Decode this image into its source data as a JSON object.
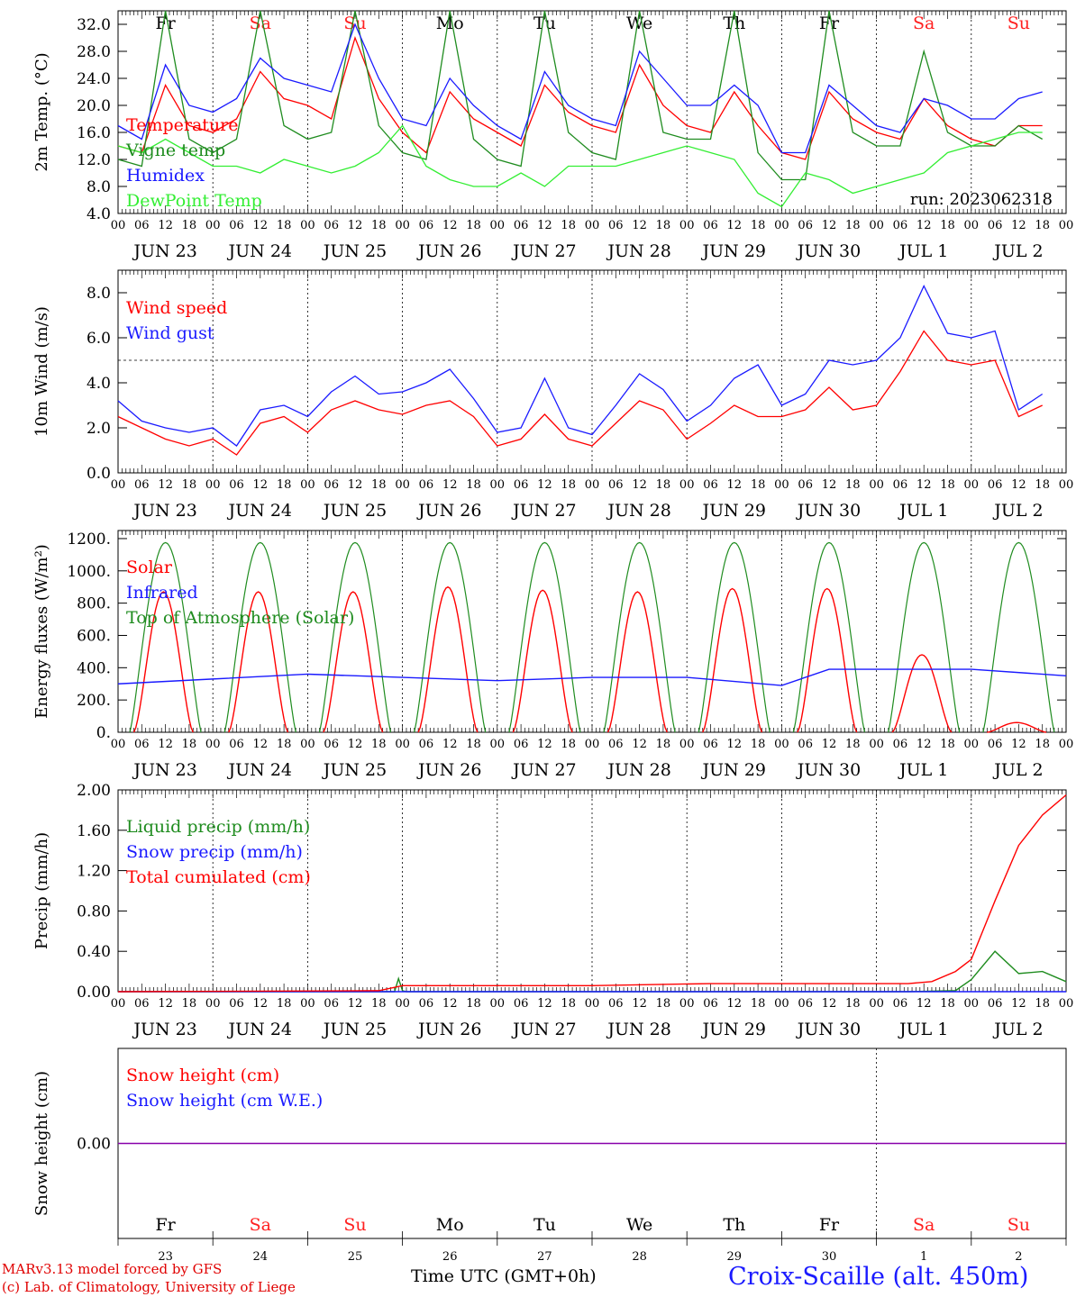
{
  "run_label": "run: 2023062318",
  "station_title": "Croix-Scaille (alt. 450m)",
  "credits": [
    "MARv3.13 model forced by GFS",
    "(c) Lab. of Climatology, University of Liege"
  ],
  "time_label": "Time UTC (GMT+0h)",
  "colors": {
    "red": "#ff0000",
    "green": "#1f8c1f",
    "blue": "#1a1aff",
    "lightgreen": "#33ee33",
    "purple": "#8800aa",
    "weekend": "#ff2020",
    "weekday": "#000000"
  },
  "chart_data": [
    {
      "type": "line",
      "ylabel": "2m Temp. (°C)",
      "ylim": [
        4,
        34
      ],
      "yticks": [
        "4.0",
        "8.0",
        "12.0",
        "16.0",
        "20.0",
        "24.0",
        "28.0",
        "32.0"
      ],
      "x_unit": "hours from 2023-06-23 00 UTC",
      "hour_ticks": [
        "00",
        "06",
        "12",
        "18"
      ],
      "date_labels": [
        "JUN 23",
        "JUN 24",
        "JUN 25",
        "JUN 26",
        "JUN 27",
        "JUN 28",
        "JUN 29",
        "JUN 30",
        "JUL  1",
        "JUL  2"
      ],
      "weekdays": [
        "Fr",
        "Sa",
        "Su",
        "Mo",
        "Tu",
        "We",
        "Th",
        "Fr",
        "Sa",
        "Su"
      ],
      "annotation": "run: 2023062318",
      "series": [
        {
          "name": "Temperature",
          "color": "red",
          "x": [
            0,
            6,
            12,
            18,
            24,
            30,
            36,
            42,
            48,
            54,
            60,
            66,
            72,
            78,
            84,
            90,
            96,
            102,
            108,
            114,
            120,
            126,
            132,
            138,
            144,
            150,
            156,
            162,
            168,
            174,
            180,
            186,
            192,
            198,
            204,
            210,
            216,
            222,
            228,
            234
          ],
          "values": [
            14,
            13,
            23,
            17,
            16,
            18,
            25,
            21,
            20,
            18,
            30,
            21,
            16,
            13,
            22,
            18,
            16,
            14,
            23,
            19,
            17,
            16,
            26,
            20,
            17,
            16,
            22,
            17,
            13,
            12,
            22,
            18,
            16,
            15,
            21,
            17,
            15,
            14,
            17,
            17
          ]
        },
        {
          "name": "Vigne temp",
          "color": "green",
          "x": [
            0,
            6,
            12,
            18,
            24,
            30,
            36,
            42,
            48,
            54,
            60,
            66,
            72,
            78,
            84,
            90,
            96,
            102,
            108,
            114,
            120,
            126,
            132,
            138,
            144,
            150,
            156,
            162,
            168,
            174,
            180,
            186,
            192,
            198,
            204,
            210,
            216,
            222,
            228,
            234
          ],
          "values": [
            12,
            11,
            34,
            15,
            13,
            15,
            34,
            17,
            15,
            16,
            34,
            17,
            13,
            12,
            34,
            15,
            12,
            11,
            34,
            16,
            13,
            12,
            34,
            16,
            15,
            15,
            34,
            13,
            9,
            9,
            34,
            16,
            14,
            14,
            28,
            16,
            14,
            14,
            17,
            15
          ]
        },
        {
          "name": "Humidex",
          "color": "blue",
          "x": [
            0,
            6,
            12,
            18,
            24,
            30,
            36,
            42,
            48,
            54,
            60,
            66,
            72,
            78,
            84,
            90,
            96,
            102,
            108,
            114,
            120,
            126,
            132,
            138,
            144,
            150,
            156,
            162,
            168,
            174,
            180,
            186,
            192,
            198,
            204,
            210,
            216,
            222,
            228,
            234
          ],
          "values": [
            17,
            15,
            26,
            20,
            19,
            21,
            27,
            24,
            23,
            22,
            32,
            24,
            18,
            17,
            24,
            20,
            17,
            15,
            25,
            20,
            18,
            17,
            28,
            24,
            20,
            20,
            23,
            20,
            13,
            13,
            23,
            20,
            17,
            16,
            21,
            20,
            18,
            18,
            21,
            22
          ]
        },
        {
          "name": "DewPoint Temp",
          "color": "lightgreen",
          "x": [
            0,
            6,
            12,
            18,
            24,
            30,
            36,
            42,
            48,
            54,
            60,
            66,
            72,
            78,
            84,
            90,
            96,
            102,
            108,
            114,
            120,
            126,
            132,
            138,
            144,
            150,
            156,
            162,
            168,
            174,
            180,
            186,
            192,
            198,
            204,
            210,
            216,
            222,
            228,
            234
          ],
          "values": [
            14,
            13,
            15,
            13,
            11,
            11,
            10,
            12,
            11,
            10,
            11,
            13,
            17,
            11,
            9,
            8,
            8,
            10,
            8,
            11,
            11,
            11,
            12,
            13,
            14,
            13,
            12,
            7,
            5,
            10,
            9,
            7,
            8,
            9,
            10,
            13,
            14,
            15,
            16,
            16
          ]
        }
      ]
    },
    {
      "type": "line",
      "ylabel": "10m Wind (m/s)",
      "ylim": [
        0,
        9
      ],
      "yticks": [
        "0.0",
        "2.0",
        "4.0",
        "6.0",
        "8.0"
      ],
      "reference_line": 5,
      "series": [
        {
          "name": "Wind speed",
          "color": "red",
          "x": [
            0,
            6,
            12,
            18,
            24,
            30,
            36,
            42,
            48,
            54,
            60,
            66,
            72,
            78,
            84,
            90,
            96,
            102,
            108,
            114,
            120,
            126,
            132,
            138,
            144,
            150,
            156,
            162,
            168,
            174,
            180,
            186,
            192,
            198,
            204,
            210,
            216,
            222,
            228,
            234
          ],
          "values": [
            2.5,
            2,
            1.5,
            1.2,
            1.5,
            0.8,
            2.2,
            2.5,
            1.8,
            2.8,
            3.2,
            2.8,
            2.6,
            3,
            3.2,
            2.5,
            1.2,
            1.5,
            2.6,
            1.5,
            1.2,
            2.2,
            3.2,
            2.8,
            1.5,
            2.2,
            3,
            2.5,
            2.5,
            2.8,
            3.8,
            2.8,
            3,
            4.5,
            6.3,
            5,
            4.8,
            5,
            2.5,
            3
          ]
        },
        {
          "name": "Wind gust",
          "color": "blue",
          "x": [
            0,
            6,
            12,
            18,
            24,
            30,
            36,
            42,
            48,
            54,
            60,
            66,
            72,
            78,
            84,
            90,
            96,
            102,
            108,
            114,
            120,
            126,
            132,
            138,
            144,
            150,
            156,
            162,
            168,
            174,
            180,
            186,
            192,
            198,
            204,
            210,
            216,
            222,
            228,
            234
          ],
          "values": [
            3.2,
            2.3,
            2,
            1.8,
            2,
            1.2,
            2.8,
            3,
            2.5,
            3.6,
            4.3,
            3.5,
            3.6,
            4,
            4.6,
            3.3,
            1.8,
            2,
            4.2,
            2,
            1.7,
            3,
            4.4,
            3.7,
            2.3,
            3,
            4.2,
            4.8,
            3,
            3.5,
            5,
            4.8,
            5,
            6,
            8.3,
            6.2,
            6,
            6.3,
            2.8,
            3.5
          ]
        }
      ]
    },
    {
      "type": "line",
      "ylabel": "Energy fluxes (W/m²)",
      "ylim": [
        0,
        1250
      ],
      "yticks": [
        "0.",
        "200.",
        "400.",
        "600.",
        "800.",
        "1000.",
        "1200."
      ],
      "series": [
        {
          "name": "Solar",
          "color": "red",
          "daily_peaks": [
            870,
            870,
            870,
            900,
            880,
            870,
            890,
            890,
            480,
            60
          ]
        },
        {
          "name": "Infrared",
          "color": "blue",
          "x": [
            0,
            24,
            48,
            72,
            96,
            120,
            144,
            168,
            180,
            216,
            240
          ],
          "values": [
            300,
            330,
            360,
            340,
            320,
            340,
            340,
            290,
            390,
            390,
            350
          ]
        },
        {
          "name": "Top of Atmosphere (Solar)",
          "color": "green",
          "daily_peak": 1175
        }
      ]
    },
    {
      "type": "line",
      "ylabel": "Precip (mm/h)",
      "ylim": [
        0,
        2
      ],
      "yticks": [
        "0.00",
        "0.40",
        "0.80",
        "1.20",
        "1.60",
        "2.00"
      ],
      "series": [
        {
          "name": "Liquid precip (mm/h)",
          "color": "green",
          "x": [
            0,
            70,
            71,
            72,
            73,
            200,
            212,
            216,
            222,
            228,
            234,
            240
          ],
          "values": [
            0,
            0,
            0.13,
            0.01,
            0,
            0,
            0.01,
            0.12,
            0.4,
            0.18,
            0.2,
            0.1
          ]
        },
        {
          "name": "Snow precip (mm/h)",
          "color": "blue",
          "x": [
            0,
            240
          ],
          "values": [
            0,
            0
          ]
        },
        {
          "name": "Total cumulated (cm)",
          "color": "red",
          "x": [
            0,
            66,
            72,
            120,
            150,
            200,
            206,
            212,
            216,
            222,
            228,
            234,
            240
          ],
          "values": [
            0,
            0.01,
            0.06,
            0.06,
            0.08,
            0.08,
            0.1,
            0.2,
            0.32,
            0.9,
            1.45,
            1.75,
            1.95
          ]
        }
      ]
    },
    {
      "type": "line",
      "ylabel": "Snow height (cm)",
      "ylim": [
        -1,
        1
      ],
      "yticks": [
        "0.00"
      ],
      "series": [
        {
          "name": "Snow height (cm)",
          "color": "red",
          "x": [
            0,
            240
          ],
          "values": [
            0,
            0
          ]
        },
        {
          "name": "Snow height (cm W.E.)",
          "color": "blue",
          "x": [
            0,
            240
          ],
          "values": [
            0,
            0
          ]
        }
      ],
      "weekdays": [
        "Fr",
        "Sa",
        "Su",
        "Mo",
        "Tu",
        "We",
        "Th",
        "Fr",
        "Sa",
        "Su"
      ],
      "day_numbers": [
        "23",
        "24",
        "25",
        "26",
        "27",
        "28",
        "29",
        "30",
        "1",
        "2"
      ]
    }
  ]
}
